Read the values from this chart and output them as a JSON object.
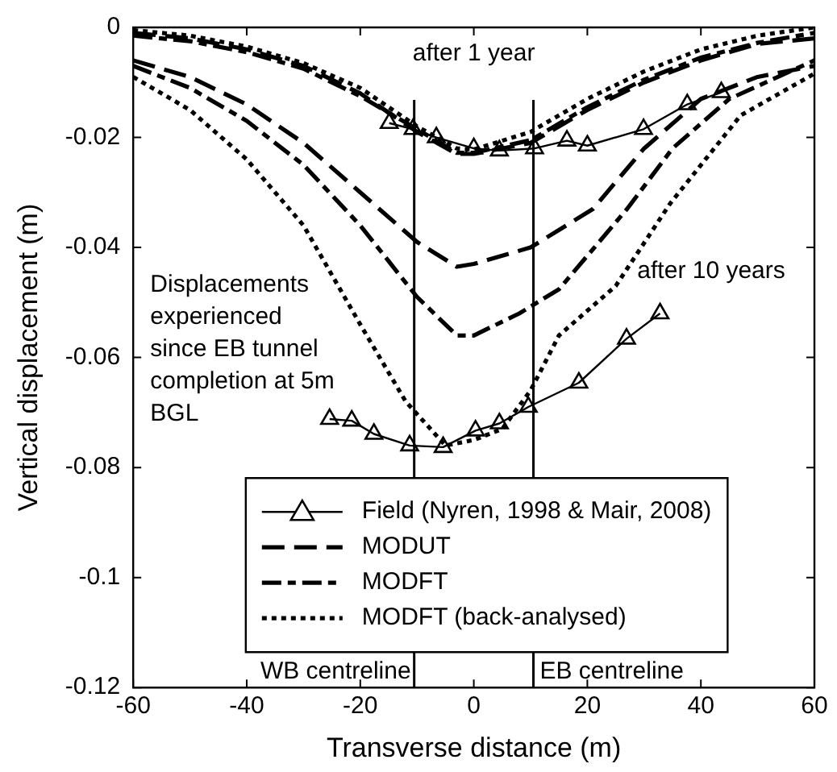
{
  "chart_data": {
    "type": "line",
    "xlabel": "Transverse distance (m)",
    "ylabel": "Vertical displacement (m)",
    "xlim": [
      -60,
      60
    ],
    "xticks": [
      -60,
      -40,
      -20,
      0,
      20,
      40,
      60
    ],
    "ylim": [
      -0.12,
      0
    ],
    "yticks": [
      -0.12,
      -0.1,
      -0.08,
      -0.06,
      -0.04,
      -0.02,
      0
    ],
    "grid": false,
    "legend": "bottom",
    "series": [
      {
        "name": "Field (Nyren, 1998 & Mair, 2008)",
        "color": "#000000",
        "marker": "triangle",
        "line_style": "solid",
        "x": [
          -14.9,
          -10.7,
          -6.6,
          0,
          4.5,
          10.7,
          16.4,
          20,
          29.9,
          37.6,
          43.6
        ],
        "values": [
          -0.0174,
          -0.0185,
          -0.02,
          -0.022,
          -0.0224,
          -0.022,
          -0.0206,
          -0.0215,
          -0.0185,
          -0.014,
          -0.0118
        ]
      },
      {
        "name": "MODUT",
        "color": "#000000",
        "marker": "none",
        "line_style": "dashed",
        "x": [
          -60,
          -50,
          -40,
          -30,
          -20,
          -10,
          -3,
          0,
          10,
          20,
          30,
          40,
          50,
          60
        ],
        "values": [
          -0.001,
          -0.002,
          -0.004,
          -0.007,
          -0.012,
          -0.019,
          -0.023,
          -0.023,
          -0.021,
          -0.015,
          -0.01,
          -0.006,
          -0.003,
          -0.002
        ]
      },
      {
        "name": "MODFT",
        "color": "#000000",
        "marker": "none",
        "line_style": "dashdot",
        "x": [
          -60,
          -50,
          -40,
          -30,
          -20,
          -10,
          -3,
          0,
          10,
          20,
          30,
          40,
          50,
          60
        ],
        "values": [
          -0.0015,
          -0.0025,
          -0.0045,
          -0.0075,
          -0.0125,
          -0.0185,
          -0.0228,
          -0.0228,
          -0.0205,
          -0.0145,
          -0.0095,
          -0.0055,
          -0.0028,
          -0.001
        ]
      },
      {
        "name": "MODFT (back-analysed)",
        "color": "#000000",
        "marker": "none",
        "line_style": "dotted",
        "x": [
          -60,
          -50,
          -40,
          -30,
          -20,
          -10,
          -3,
          0,
          10,
          20,
          30,
          40,
          50,
          60
        ],
        "values": [
          -0.0005,
          -0.0015,
          -0.0035,
          -0.0065,
          -0.011,
          -0.018,
          -0.022,
          -0.0222,
          -0.019,
          -0.013,
          -0.008,
          -0.004,
          -0.0015,
          0
        ]
      },
      {
        "color": "#000000",
        "marker": "triangle",
        "line_style": "solid",
        "x": [
          -25.4,
          -21.5,
          -17.6,
          -11.3,
          -5.4,
          0.3,
          4.5,
          9.6,
          18.5,
          26.9,
          32.8
        ],
        "values": [
          -0.0712,
          -0.0715,
          -0.0739,
          -0.076,
          -0.0763,
          -0.0733,
          -0.072,
          -0.069,
          -0.0646,
          -0.0566,
          -0.052
        ]
      },
      {
        "color": "#000000",
        "marker": "none",
        "line_style": "dashed",
        "x": [
          -60,
          -50,
          -40,
          -30,
          -20,
          -10,
          -3,
          0,
          10,
          21,
          30,
          40,
          50,
          60
        ],
        "values": [
          -0.006,
          -0.009,
          -0.014,
          -0.021,
          -0.03,
          -0.039,
          -0.0435,
          -0.043,
          -0.04,
          -0.033,
          -0.022,
          -0.013,
          -0.009,
          -0.007
        ]
      },
      {
        "color": "#000000",
        "marker": "none",
        "line_style": "dashdot",
        "x": [
          -60,
          -50,
          -40,
          -30,
          -20,
          -10,
          -3,
          0,
          8,
          15,
          27,
          35,
          45,
          60
        ],
        "values": [
          -0.007,
          -0.011,
          -0.017,
          -0.025,
          -0.036,
          -0.049,
          -0.056,
          -0.056,
          -0.052,
          -0.0476,
          -0.033,
          -0.022,
          -0.013,
          -0.006
        ]
      },
      {
        "color": "#000000",
        "marker": "none",
        "line_style": "dotted",
        "x": [
          -60,
          -50,
          -40,
          -30,
          -20,
          -12,
          -5,
          0,
          5,
          10,
          15,
          25,
          34.6,
          47,
          60
        ],
        "values": [
          -0.009,
          -0.015,
          -0.024,
          -0.036,
          -0.054,
          -0.068,
          -0.076,
          -0.075,
          -0.073,
          -0.066,
          -0.056,
          -0.047,
          -0.032,
          -0.016,
          -0.0084
        ]
      }
    ],
    "ref_lines": [
      {
        "axis": "x",
        "value": -10.5,
        "label": "WB centreline"
      },
      {
        "axis": "x",
        "value": 10.5,
        "label": "EB centreline"
      }
    ],
    "annotations": [
      "after 1 year",
      "after 10 years",
      "Displacements experienced since EB tunnel completion at 5m BGL"
    ]
  }
}
